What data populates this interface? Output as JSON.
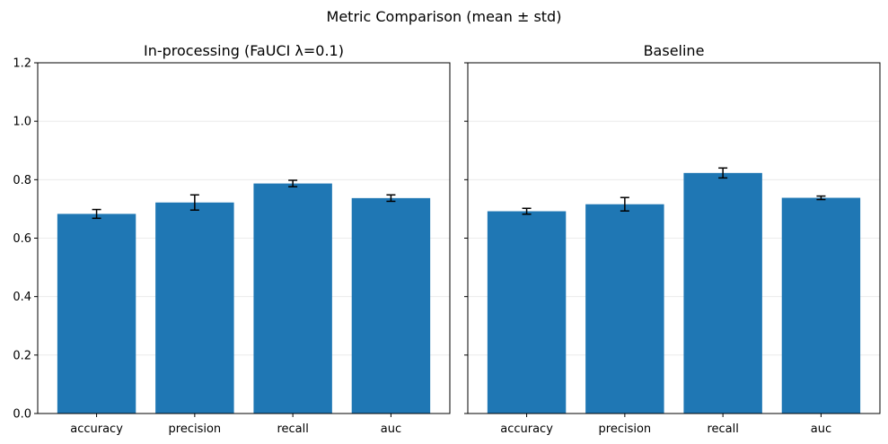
{
  "figure_title": "Metric Comparison (mean ± std)",
  "chart_data": [
    {
      "type": "bar",
      "title": "In-processing (FaUCI λ=0.1)",
      "categories": [
        "accuracy",
        "precision",
        "recall",
        "auc"
      ],
      "values": [
        0.683,
        0.722,
        0.787,
        0.737
      ],
      "errors": [
        0.015,
        0.026,
        0.011,
        0.011
      ],
      "ylim": [
        0,
        1.2
      ],
      "yticks": [
        0.0,
        0.2,
        0.4,
        0.6,
        0.8,
        1.0,
        1.2
      ],
      "ytick_labels": [
        "0.0",
        "0.2",
        "0.4",
        "0.6",
        "0.8",
        "1.0",
        "1.2"
      ],
      "xlabel": "",
      "ylabel": "",
      "grid": "y",
      "bar_color": "#1f77b4"
    },
    {
      "type": "bar",
      "title": "Baseline",
      "categories": [
        "accuracy",
        "precision",
        "recall",
        "auc"
      ],
      "values": [
        0.692,
        0.716,
        0.823,
        0.738
      ],
      "errors": [
        0.01,
        0.023,
        0.017,
        0.006
      ],
      "ylim": [
        0,
        1.2
      ],
      "yticks": [
        0.0,
        0.2,
        0.4,
        0.6,
        0.8,
        1.0,
        1.2
      ],
      "ytick_labels": [
        "",
        "",
        "",
        "",
        "",
        "",
        ""
      ],
      "xlabel": "",
      "ylabel": "",
      "grid": "y",
      "bar_color": "#1f77b4"
    }
  ]
}
